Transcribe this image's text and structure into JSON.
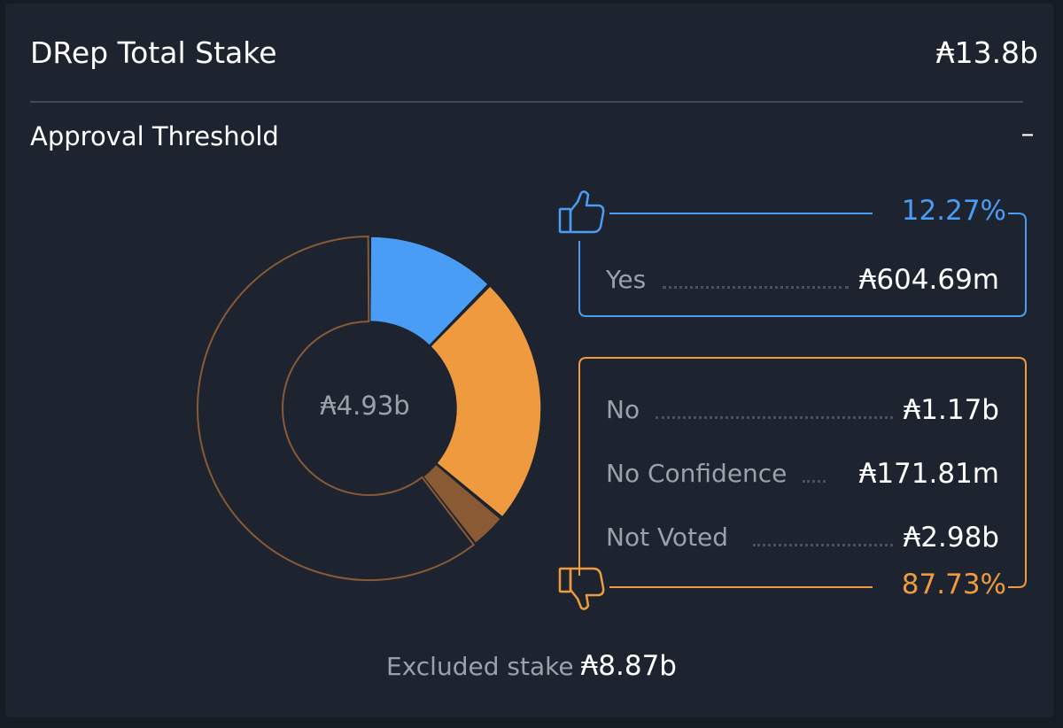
{
  "header": {
    "title": "DRep Total Stake",
    "total": "₳13.8b"
  },
  "approval": {
    "title": "Approval Threshold",
    "toggle": "–"
  },
  "chart_data": {
    "type": "pie",
    "center_label": "₳4.93b",
    "slices": [
      {
        "name": "Yes",
        "value": 604.69,
        "unit": "m",
        "color": "#4a9df5"
      },
      {
        "name": "No",
        "value": 1170,
        "unit": "m",
        "color": "#f09a40"
      },
      {
        "name": "No Confidence",
        "value": 171.81,
        "unit": "m",
        "color": "#8a5a34"
      },
      {
        "name": "Not Voted",
        "value": 2980,
        "unit": "m",
        "color": "#8a5a34"
      }
    ]
  },
  "yes_panel": {
    "percent": "12.27%",
    "rows": [
      {
        "label": "Yes",
        "value": "₳604.69m"
      }
    ],
    "icon": "thumbs-up-icon",
    "color": "#4a9df5"
  },
  "no_panel": {
    "percent": "87.73%",
    "rows": [
      {
        "label": "No",
        "value": "₳1.17b"
      },
      {
        "label": "No Confidence",
        "value": "₳171.81m"
      },
      {
        "label": "Not Voted",
        "value": "₳2.98b"
      }
    ],
    "icon": "thumbs-down-icon",
    "color": "#f09a40"
  },
  "footer": {
    "excluded_label": "Excluded stake",
    "excluded_value": "₳8.87b"
  }
}
